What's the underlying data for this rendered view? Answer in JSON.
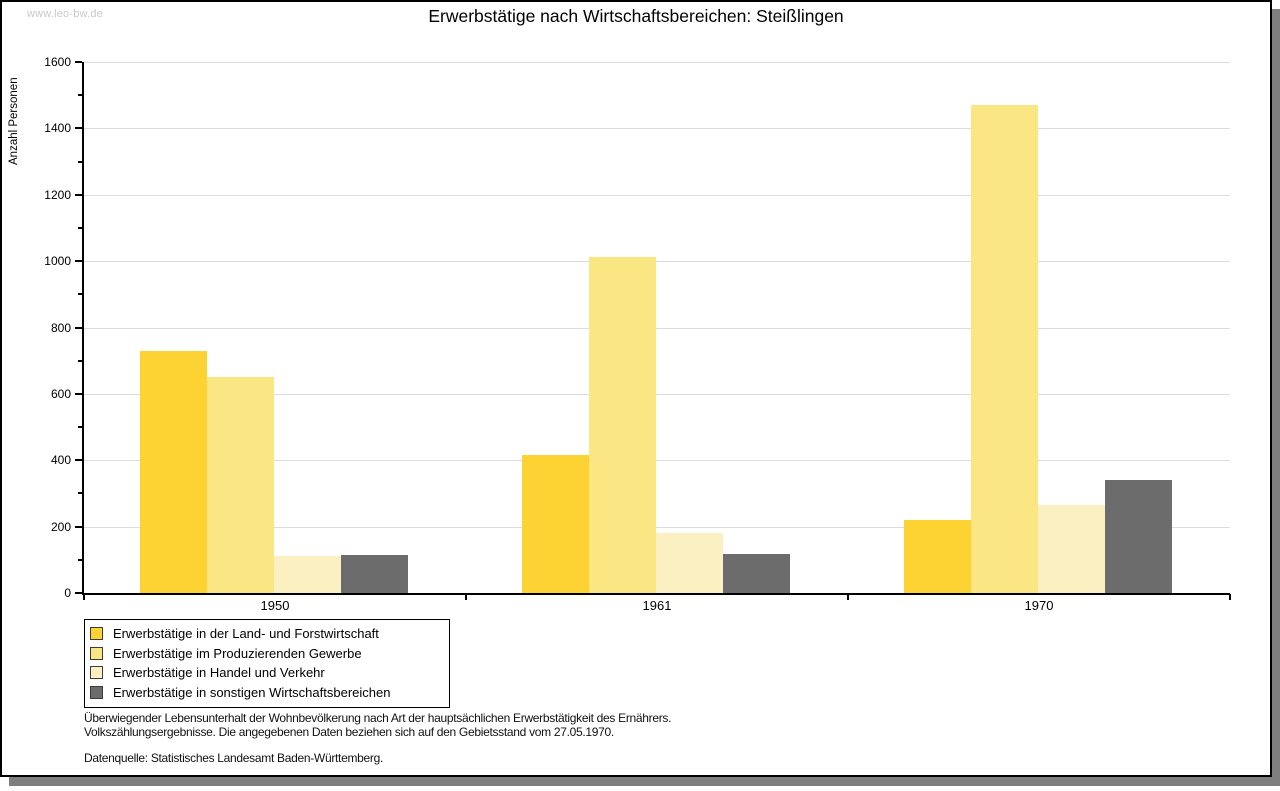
{
  "watermark": "www.leo-bw.de",
  "chart_data": {
    "type": "bar",
    "title": "Erwerbstätige nach Wirtschaftsbereichen: Steißlingen",
    "ylabel": "Anzahl Personen",
    "xlabel": "",
    "categories": [
      "1950",
      "1961",
      "1970"
    ],
    "series": [
      {
        "name": "Erwerbstätige in der Land- und Forstwirtschaft",
        "color": "#FCD333",
        "values": [
          730,
          417,
          220
        ]
      },
      {
        "name": "Erwerbstätige im Produzierenden Gewerbe",
        "color": "#FBE684",
        "values": [
          650,
          1012,
          1470
        ]
      },
      {
        "name": "Erwerbstätige in Handel und Verkehr",
        "color": "#FAF0C2",
        "values": [
          110,
          182,
          265
        ]
      },
      {
        "name": "Erwerbstätige in sonstigen Wirtschaftsbereichen",
        "color": "#6C6C6C",
        "values": [
          113,
          119,
          340
        ]
      }
    ],
    "ylim": [
      0,
      1600
    ],
    "ytick_major": 200,
    "ytick_minor": 100,
    "grid": "horizontal-major",
    "legend_position": "bottom-left"
  },
  "footnote": {
    "line1": "Überwiegender Lebensunterhalt der Wohnbevölkerung nach Art der hauptsächlichen Erwerbstätigkeit des Ernährers.",
    "line2": "Volkszählungsergebnisse. Die angegebenen Daten beziehen sich auf den Gebietsstand vom 27.05.1970.",
    "source": "Datenquelle: Statistisches Landesamt Baden-Württemberg."
  }
}
